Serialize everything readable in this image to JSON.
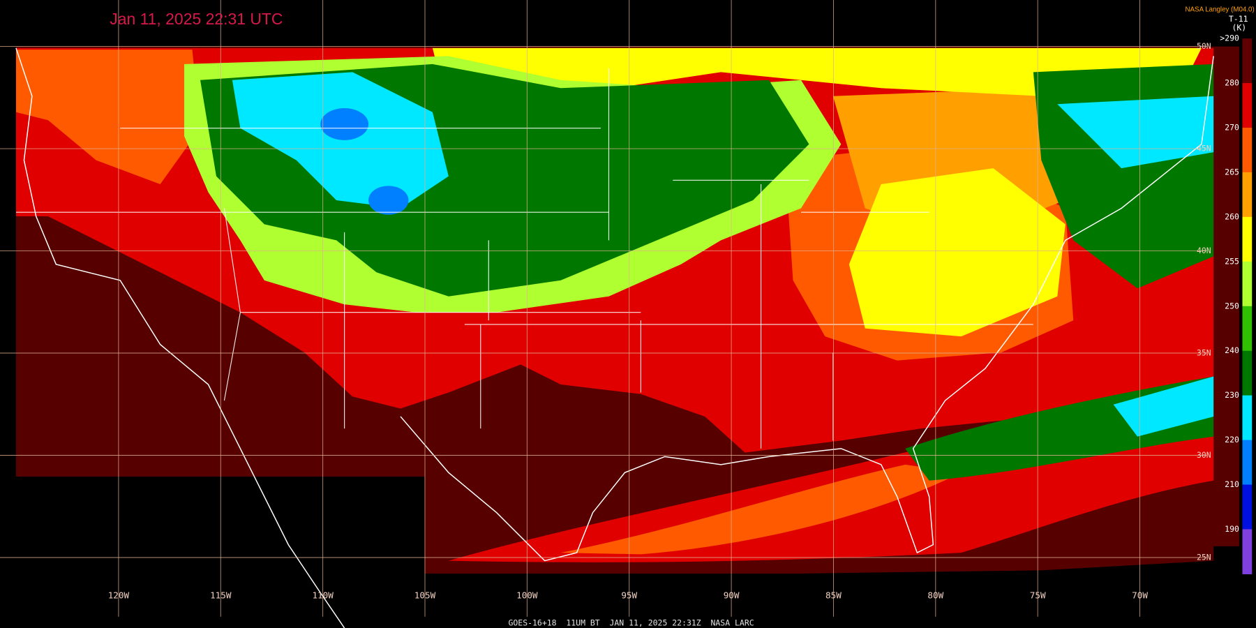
{
  "header": {
    "timestamp": "Jan 11, 2025 22:31 UTC",
    "source": "NASA Langley (M04.0)"
  },
  "colorbar": {
    "title": "T-11",
    "unit": "(K)",
    "labels": [
      ">290",
      "280",
      "270",
      "265",
      "260",
      "255",
      "250",
      "240",
      "230",
      "220",
      "210",
      "190"
    ],
    "colors": [
      "#600000",
      "#e00000",
      "#ff5a00",
      "#ffa000",
      "#ffff00",
      "#b0ff30",
      "#30c000",
      "#007800",
      "#00e8ff",
      "#0080ff",
      "#0010e0",
      "#8040e0"
    ]
  },
  "latitudes": [
    "50N",
    "45N",
    "40N",
    "35N",
    "30N",
    "25N"
  ],
  "longitudes": [
    "120W",
    "115W",
    "110W",
    "105W",
    "100W",
    "95W",
    "90W",
    "85W",
    "80W",
    "75W",
    "70W"
  ],
  "footer": "GOES-16+18  11UM BT  JAN 11, 2025 22:31Z  NASA LARC"
}
